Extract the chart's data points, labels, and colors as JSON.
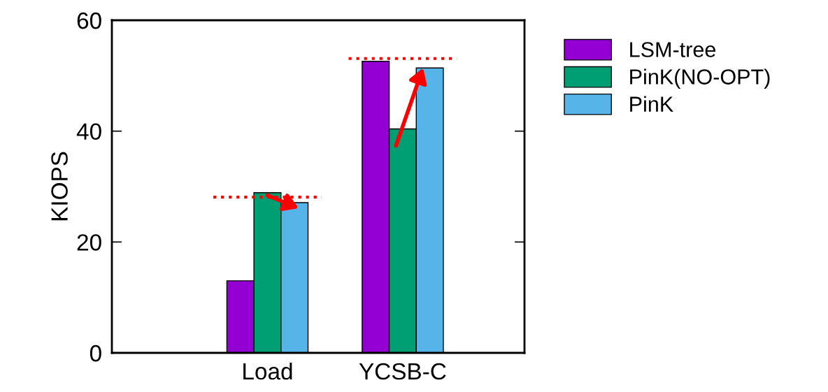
{
  "chart_data": {
    "type": "bar",
    "ylabel": "KIOPS",
    "categories": [
      null,
      "Load",
      "YCSB-C"
    ],
    "series": [
      {
        "name": "LSM-tree",
        "color": "#9400d3",
        "values": [
          null,
          13.0,
          52.6
        ]
      },
      {
        "name": "PinK(NO-OPT)",
        "color": "#009e73",
        "values": [
          null,
          28.9,
          40.4
        ]
      },
      {
        "name": "PinK",
        "color": "#56b4e9",
        "values": [
          null,
          27.1,
          51.4
        ]
      }
    ],
    "ylim": [
      0,
      60
    ],
    "yticks": [
      0,
      20,
      40,
      60
    ],
    "ref_lines": [
      {
        "axis": "y",
        "value": 28.1,
        "color": "#ff0000",
        "line_style": "dotted"
      },
      {
        "axis": "y",
        "value": 53.1,
        "color": "#ff0000",
        "line_style": "dotted"
      }
    ],
    "legend": "top right",
    "grid": false
  }
}
